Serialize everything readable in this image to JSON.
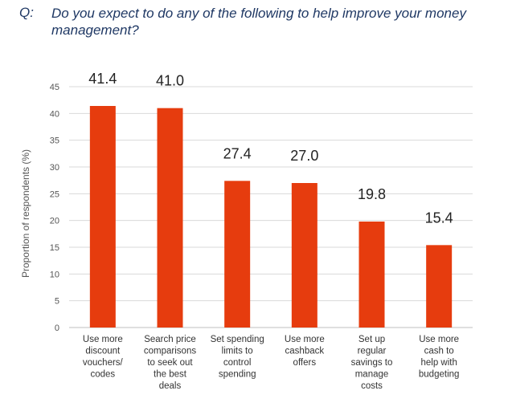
{
  "question": {
    "prefix": "Q:",
    "text": "Do you expect to do any of the following to help improve your money management?"
  },
  "colors": {
    "bar": "#e63c0e",
    "grid": "#d9d9d9"
  },
  "chart_data": {
    "type": "bar",
    "title": "Do you expect to do any of the following to help improve your money management?",
    "ylabel": "Proportion of respondents (%)",
    "xlabel": "",
    "ylim": [
      0,
      45
    ],
    "yticks": [
      0,
      5,
      10,
      15,
      20,
      25,
      30,
      35,
      40,
      45
    ],
    "grid": true,
    "categories": [
      [
        "Use more",
        "discount",
        "vouchers/",
        "codes"
      ],
      [
        "Search price",
        "comparisons",
        "to seek out",
        "the best",
        "deals"
      ],
      [
        "Set spending",
        "limits to",
        "control",
        "spending"
      ],
      [
        "Use more",
        "cashback",
        "offers"
      ],
      [
        "Set up",
        "regular",
        "savings to",
        "manage",
        "costs"
      ],
      [
        "Use more",
        "cash to",
        "help with",
        "budgeting"
      ]
    ],
    "values": [
      41.4,
      41.0,
      27.4,
      27.0,
      19.8,
      15.4
    ],
    "data_labels": [
      "41.4",
      "41.0",
      "27.4",
      "27.0",
      "19.8",
      "15.4"
    ]
  }
}
